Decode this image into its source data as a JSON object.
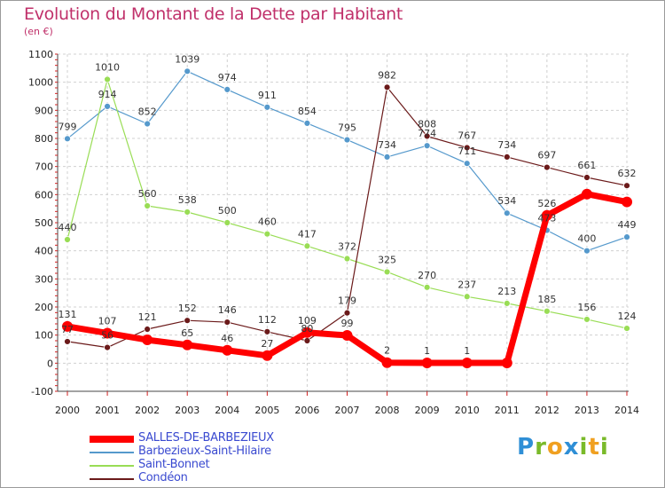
{
  "chart_data": {
    "type": "line",
    "title": "Evolution du Montant de la Dette par Habitant",
    "subtitle": "(en €)",
    "x": [
      2000,
      2001,
      2002,
      2003,
      2004,
      2005,
      2006,
      2007,
      2008,
      2009,
      2010,
      2011,
      2012,
      2013,
      2014
    ],
    "ylim": [
      -100,
      1100
    ],
    "yticks": [
      -100,
      0,
      100,
      200,
      300,
      400,
      500,
      600,
      700,
      800,
      900,
      1000,
      1100
    ],
    "grid": true,
    "legend_position": "bottom-left",
    "series": [
      {
        "name": "SALLES-DE-BARBEZIEUX",
        "color": "#ff0000",
        "values": [
          131,
          107,
          83,
          65,
          46,
          27,
          109,
          99,
          2,
          1,
          1,
          1,
          526,
          602,
          574
        ],
        "labels": [
          "131",
          "107",
          "",
          "65",
          "46",
          "27",
          "109",
          "99",
          "2",
          "1",
          "1",
          "",
          "526",
          "",
          ""
        ]
      },
      {
        "name": "Barbezieux-Saint-Hilaire",
        "color": "#5599cc",
        "values": [
          799,
          914,
          852,
          1039,
          974,
          911,
          854,
          795,
          734,
          774,
          711,
          534,
          473,
          400,
          449
        ],
        "labels": [
          "799",
          "914",
          "852",
          "1039",
          "974",
          "911",
          "854",
          "795",
          "734",
          "774",
          "711",
          "534",
          "473",
          "400",
          "449"
        ]
      },
      {
        "name": "Saint-Bonnet",
        "color": "#99dd55",
        "values": [
          440,
          1010,
          560,
          538,
          500,
          460,
          417,
          372,
          325,
          270,
          237,
          213,
          185,
          156,
          124
        ],
        "labels": [
          "440",
          "1010",
          "560",
          "538",
          "500",
          "460",
          "417",
          "372",
          "325",
          "270",
          "237",
          "213",
          "185",
          "156",
          "124"
        ]
      },
      {
        "name": "Condéon",
        "color": "#6b1a1a",
        "values": [
          77,
          56,
          121,
          152,
          146,
          112,
          80,
          179,
          982,
          808,
          767,
          734,
          697,
          661,
          632
        ],
        "labels": [
          "77",
          "56",
          "121",
          "152",
          "146",
          "112",
          "80",
          "179",
          "982",
          "808",
          "767",
          "734",
          "697",
          "661",
          "632"
        ]
      }
    ]
  },
  "logo": {
    "text": "Proxiti",
    "letters": [
      {
        "ch": "P",
        "color": "#2f8fd6"
      },
      {
        "ch": "r",
        "color": "#7aba2a"
      },
      {
        "ch": "o",
        "color": "#f0a020"
      },
      {
        "ch": "x",
        "color": "#2f8fd6"
      },
      {
        "ch": "i",
        "color": "#7aba2a"
      },
      {
        "ch": "t",
        "color": "#f0a020"
      },
      {
        "ch": "i",
        "color": "#7aba2a"
      }
    ]
  }
}
